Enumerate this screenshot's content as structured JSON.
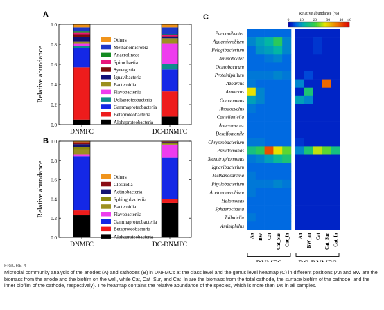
{
  "figure": {
    "label": "FIGURE 4",
    "caption": "Microbial community analysis of the anodes (A) and cathodes (B) in DNFMCs at the class level and the genus level heatmap (C) in different positions (An and BW are the biomass from the anode and the biofilm on the wall, while Cat, Cat_Sur, and Cat_In are the biomass from the total cathode, the surface biofilm of the cathode, and the inner biofilm of the cathode, respectively). The heatmap contains the relative abundance of the species, which is more than 1% in all samples."
  },
  "colors": {
    "Alphaproteobacteria": "#000000",
    "Betaproteobacteria": "#ee1c1c",
    "Gammaproteobacteria": "#1428e6",
    "Deltaproteobacteria": "#0e8c8c",
    "Flavobacteriia": "#ee3cee",
    "Bacteroidia": "#9c9020",
    "Ignavibacteria": "#101078",
    "Synergistia": "#7a0c0c",
    "Spirochaetia": "#e8157a",
    "Anaerolineae": "#138a20",
    "Methanomicrobia": "#1c38c8",
    "Others": "#f0941c",
    "Sphingobacteriia": "#8c8a10",
    "Actinobacteria": "#141470",
    "Clostridia": "#8a0c14"
  },
  "chart_data": [
    {
      "panel": "A",
      "type": "bar",
      "stacked": true,
      "categories": [
        "DNMFC",
        "DC-DNMFC"
      ],
      "ylabel": "Relative abundance",
      "ylim": [
        0,
        1.0
      ],
      "yticks": [
        "0.0",
        "0.2",
        "0.4",
        "0.6",
        "0.8",
        "1.0"
      ],
      "legend": [
        "Others",
        "Methanomicrobia",
        "Anaerolineae",
        "Spirochaetia",
        "Synergistia",
        "Ignavibacteria",
        "Bacteroidia",
        "Flavobacteriia",
        "Deltaproteobacteria",
        "Gammaproteobacteria",
        "Betaproteobacteria",
        "Alphaproteobacteria"
      ],
      "series": [
        {
          "name": "Alphaproteobacteria",
          "values": [
            0.05,
            0.08
          ]
        },
        {
          "name": "Betaproteobacteria",
          "values": [
            0.52,
            0.25
          ]
        },
        {
          "name": "Gammaproteobacteria",
          "values": [
            0.19,
            0.22
          ]
        },
        {
          "name": "Deltaproteobacteria",
          "values": [
            0.02,
            0.05
          ]
        },
        {
          "name": "Flavobacteriia",
          "values": [
            0.03,
            0.21
          ]
        },
        {
          "name": "Bacteroidia",
          "values": [
            0.02,
            0.05
          ]
        },
        {
          "name": "Ignavibacteria",
          "values": [
            0.04,
            0.01
          ]
        },
        {
          "name": "Synergistia",
          "values": [
            0.03,
            0.01
          ]
        },
        {
          "name": "Spirochaetia",
          "values": [
            0.02,
            0.01
          ]
        },
        {
          "name": "Anaerolineae",
          "values": [
            0.01,
            0.01
          ]
        },
        {
          "name": "Methanomicrobia",
          "values": [
            0.04,
            0.07
          ]
        },
        {
          "name": "Others",
          "values": [
            0.03,
            0.03
          ]
        }
      ]
    },
    {
      "panel": "B",
      "type": "bar",
      "stacked": true,
      "categories": [
        "DNMFC",
        "DC-DNMFC"
      ],
      "ylabel": "Relative abundance",
      "ylim": [
        0,
        1.0
      ],
      "yticks": [
        "0.0",
        "0.2",
        "0.4",
        "0.6",
        "0.8",
        "1.0"
      ],
      "legend": [
        "Others",
        "Clostridia",
        "Actinobacteria",
        "Sphingobacteriia",
        "Bacteroidia",
        "Flavobacteriia",
        "Gammaproteobacteria",
        "Betaproteobacteria",
        "Alphaproteobacteria"
      ],
      "series": [
        {
          "name": "Alphaproteobacteria",
          "values": [
            0.23,
            0.36
          ]
        },
        {
          "name": "Betaproteobacteria",
          "values": [
            0.05,
            0.04
          ]
        },
        {
          "name": "Gammaproteobacteria",
          "values": [
            0.56,
            0.43
          ]
        },
        {
          "name": "Flavobacteriia",
          "values": [
            0.02,
            0.13
          ]
        },
        {
          "name": "Bacteroidia",
          "values": [
            0.05,
            0.01
          ]
        },
        {
          "name": "Sphingobacteriia",
          "values": [
            0.03,
            0.01
          ]
        },
        {
          "name": "Actinobacteria",
          "values": [
            0.03,
            0.01
          ]
        },
        {
          "name": "Clostridia",
          "values": [
            0.02,
            0.005
          ]
        },
        {
          "name": "Others",
          "values": [
            0.01,
            0.005
          ]
        }
      ]
    },
    {
      "panel": "C",
      "type": "heatmap",
      "colorbar_title": "Relative abundance (%)",
      "colorbar_ticks": [
        "0",
        "10",
        "20",
        "30",
        "40",
        "46"
      ],
      "vmax": 46,
      "rows": [
        "Pannonibacter",
        "Aquamicrobium",
        "Pelagibacterium",
        "Aminobacter",
        "Ochrobactrum",
        "Proteiniphilum",
        "Azoarcus",
        "Azonexus",
        "Comamonas",
        "Rhodocyclus",
        "Castellaniella",
        "Anaerovorax",
        "Desulfomonile",
        "Chryseobacterium",
        "Pseudomonas",
        "Stenotrophomonas",
        "Ignavibacterium",
        "Methanosarcina",
        "Phyllobacterium",
        "Acetoanaerobium",
        "Halomonas",
        "Sphaerochaeta",
        "Taibaiella",
        "Aminiphilus"
      ],
      "columns": [
        "An",
        "BW",
        "Cat",
        "Cat_Sur",
        "Cat_In",
        "An",
        "BW_an",
        "Cat",
        "Cat_Sur",
        "Cat_In"
      ],
      "groups": [
        {
          "name": "DNMFC",
          "columns": [
            0,
            1,
            2,
            3,
            4
          ]
        },
        {
          "name": "DC-DNMFC",
          "columns": [
            5,
            6,
            7,
            8,
            9
          ]
        }
      ],
      "values": [
        [
          6,
          6,
          6,
          6,
          6,
          2,
          2,
          2,
          2,
          2
        ],
        [
          8,
          10,
          12,
          18,
          8,
          2,
          2,
          3,
          2,
          2
        ],
        [
          6,
          9,
          10,
          12,
          8,
          2,
          2,
          3,
          2,
          2
        ],
        [
          6,
          6,
          7,
          8,
          6,
          2,
          2,
          2,
          2,
          2
        ],
        [
          6,
          6,
          6,
          6,
          6,
          2,
          2,
          2,
          2,
          2
        ],
        [
          7,
          7,
          7,
          8,
          7,
          2,
          4,
          2,
          2,
          2
        ],
        [
          7,
          6,
          6,
          6,
          6,
          8,
          2,
          2,
          38,
          2
        ],
        [
          28,
          8,
          6,
          6,
          6,
          2,
          16,
          2,
          2,
          2
        ],
        [
          10,
          8,
          6,
          6,
          6,
          10,
          8,
          2,
          2,
          2
        ],
        [
          7,
          6,
          6,
          6,
          6,
          2,
          2,
          2,
          2,
          2
        ],
        [
          6,
          6,
          6,
          6,
          6,
          2,
          2,
          2,
          2,
          2
        ],
        [
          6,
          6,
          6,
          6,
          6,
          2,
          2,
          2,
          2,
          2
        ],
        [
          6,
          6,
          6,
          6,
          6,
          2,
          2,
          2,
          2,
          2
        ],
        [
          7,
          7,
          6,
          6,
          6,
          3,
          2,
          2,
          2,
          2
        ],
        [
          15,
          18,
          40,
          28,
          22,
          8,
          16,
          26,
          22,
          15
        ],
        [
          7,
          8,
          10,
          13,
          16,
          2,
          2,
          2,
          2,
          2
        ],
        [
          6,
          6,
          6,
          6,
          6,
          2,
          2,
          2,
          2,
          2
        ],
        [
          7,
          6,
          6,
          6,
          6,
          2,
          2,
          2,
          2,
          2
        ],
        [
          7,
          7,
          7,
          8,
          7,
          2,
          2,
          2,
          2,
          2
        ],
        [
          7,
          6,
          6,
          6,
          6,
          2,
          2,
          2,
          2,
          2
        ],
        [
          6,
          6,
          6,
          6,
          6,
          2,
          2,
          2,
          2,
          2
        ],
        [
          6,
          6,
          6,
          6,
          6,
          2,
          2,
          2,
          2,
          2
        ],
        [
          7,
          6,
          6,
          6,
          6,
          2,
          2,
          2,
          2,
          2
        ],
        [
          6,
          6,
          6,
          6,
          6,
          2,
          2,
          2,
          2,
          2
        ]
      ]
    }
  ]
}
